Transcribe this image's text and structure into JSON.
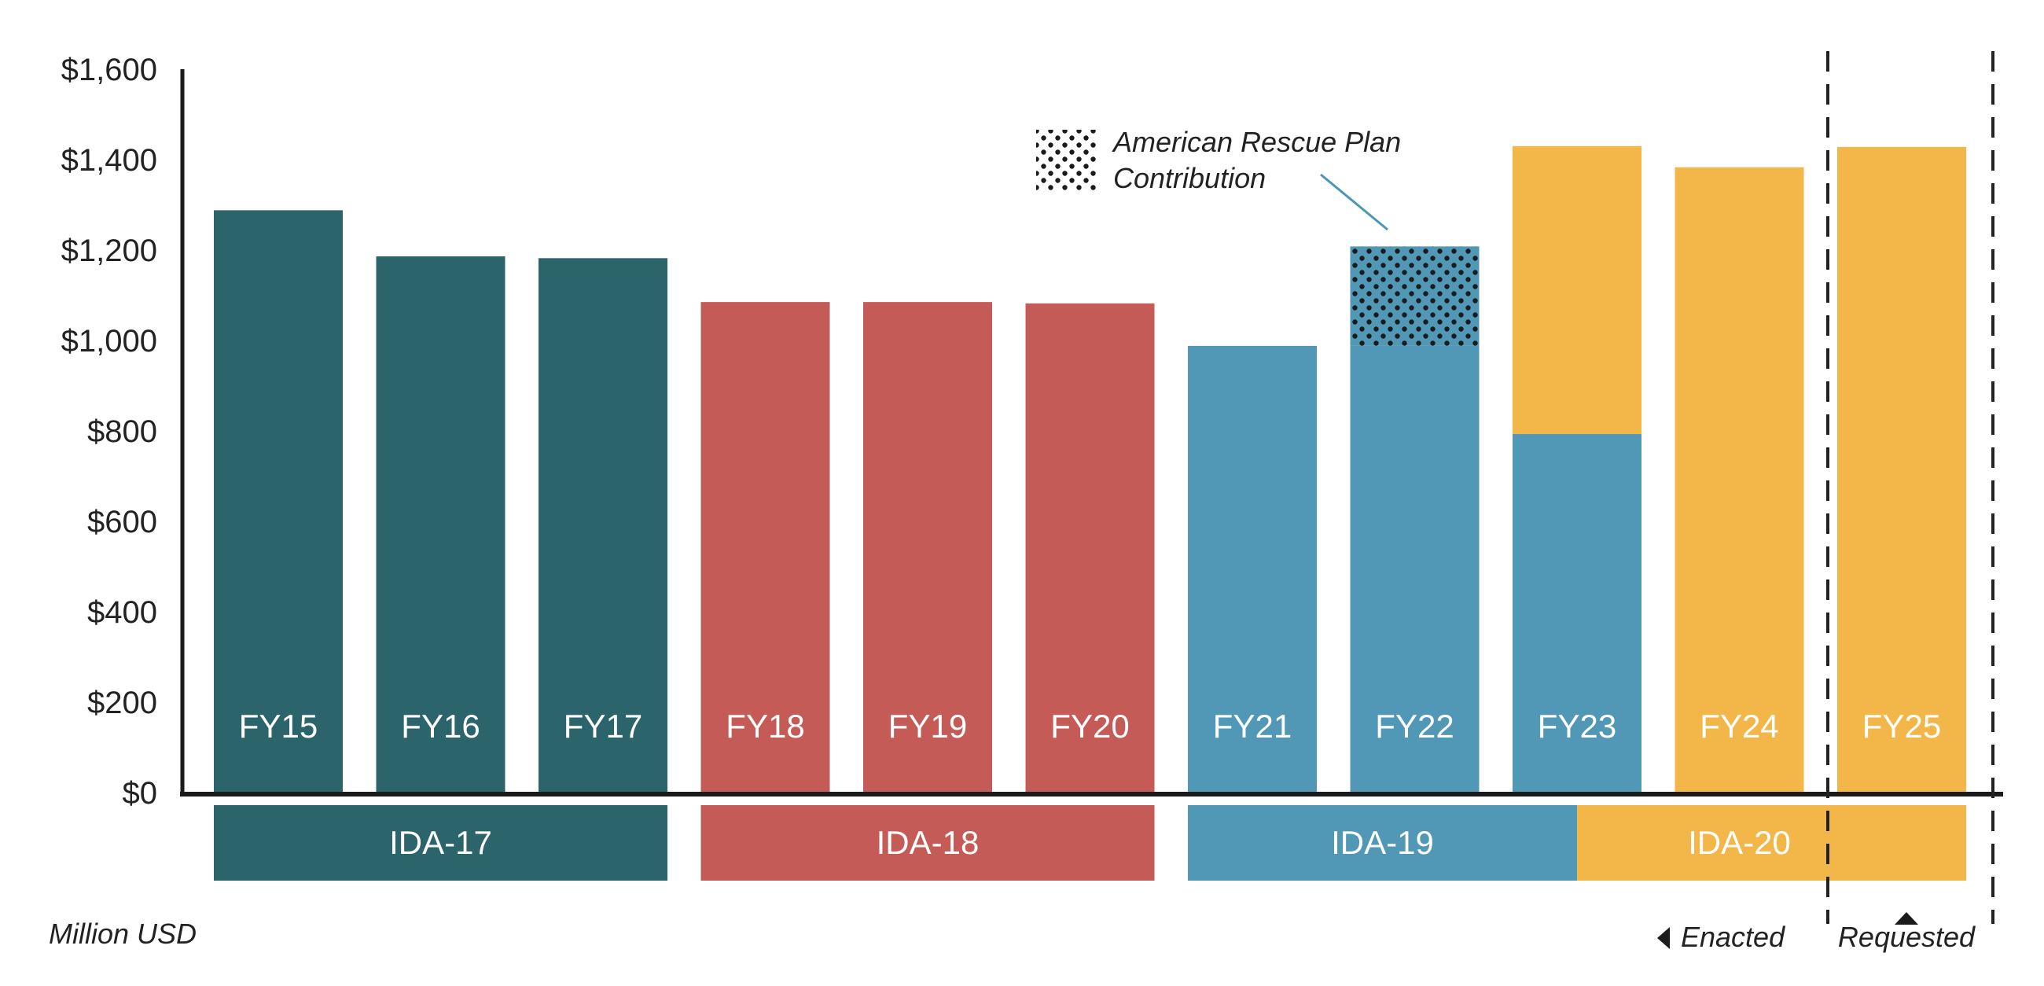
{
  "chart_data": {
    "type": "bar",
    "title": "",
    "unit_label": "Million USD",
    "ylim": [
      0,
      1600
    ],
    "yticks": [
      0,
      200,
      400,
      600,
      800,
      1000,
      1200,
      1400,
      1600
    ],
    "ytick_labels": [
      "$0",
      "$200",
      "$400",
      "$600",
      "$800",
      "$1,000",
      "$1,200",
      "$1,400",
      "$1,600"
    ],
    "categories": [
      "FY15",
      "FY16",
      "FY17",
      "FY18",
      "FY19",
      "FY20",
      "FY21",
      "FY22",
      "FY23",
      "FY24",
      "FY25"
    ],
    "series": [
      {
        "name": "IDA-17",
        "color": "#2c646b",
        "values": [
          1288,
          1186,
          1182,
          0,
          0,
          0,
          0,
          0,
          0,
          0,
          0
        ]
      },
      {
        "name": "IDA-18",
        "color": "#c45b56",
        "values": [
          0,
          0,
          0,
          1085,
          1085,
          1082,
          0,
          0,
          0,
          0,
          0
        ]
      },
      {
        "name": "IDA-19",
        "color": "#5198b6",
        "values": [
          0,
          0,
          0,
          0,
          0,
          0,
          988,
          988,
          793,
          0,
          0
        ]
      },
      {
        "name": "American Rescue Plan Contribution",
        "color": "#5198b6",
        "pattern": "dots",
        "values": [
          0,
          0,
          0,
          0,
          0,
          0,
          0,
          220,
          0,
          0,
          0
        ]
      },
      {
        "name": "IDA-20",
        "color": "#f3b649",
        "values": [
          0,
          0,
          0,
          0,
          0,
          0,
          0,
          0,
          637,
          1383,
          1428
        ]
      }
    ],
    "groups": [
      {
        "label": "IDA-17",
        "from": "FY15",
        "to": "FY17",
        "color": "#2c646b"
      },
      {
        "label": "IDA-18",
        "from": "FY18",
        "to": "FY20",
        "color": "#c45b56"
      },
      {
        "label": "IDA-19",
        "from": "FY21",
        "to": "FY23",
        "color": "#5198b6"
      },
      {
        "label": "IDA-20",
        "from": "FY23",
        "to": "FY25",
        "color": "#f3b649"
      }
    ],
    "annotations": {
      "arp_legend": "American Rescue Plan Contribution",
      "arp_legend_line1": "American Rescue Plan",
      "arp_legend_line2": "Contribution",
      "enacted": "Enacted",
      "requested": "Requested"
    },
    "requested_categories": [
      "FY25"
    ],
    "grid": false
  }
}
